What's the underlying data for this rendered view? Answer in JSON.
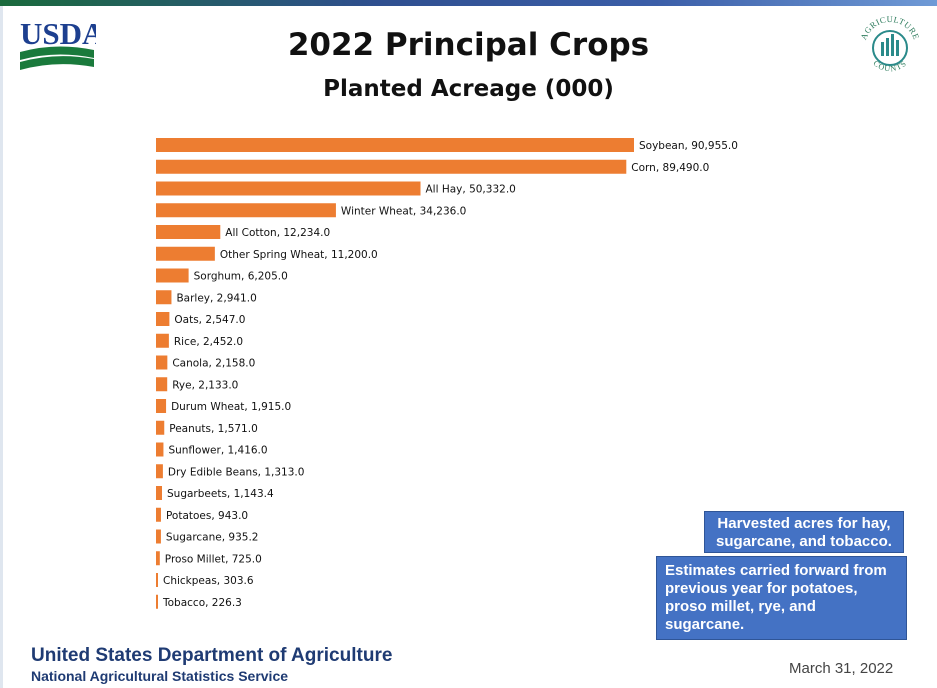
{
  "header": {
    "agency_logo_text": "USDA",
    "seal_text_top": "AGRICULTURE",
    "seal_text_bottom": "COUNTS"
  },
  "chart_data": {
    "type": "bar",
    "orientation": "horizontal",
    "title": "2022 Principal Crops",
    "subtitle": "Planted Acreage (000)",
    "xlabel": "",
    "ylabel": "",
    "grid": false,
    "bar_color": "#ed7d31",
    "xlim": [
      0,
      90955
    ],
    "categories": [
      "Soybean",
      "Corn",
      "All Hay",
      "Winter Wheat",
      "All Cotton",
      "Other Spring Wheat",
      "Sorghum",
      "Barley",
      "Oats",
      "Rice",
      "Canola",
      "Rye",
      "Durum Wheat",
      "Peanuts",
      "Sunflower",
      "Dry Edible Beans",
      "Sugarbeets",
      "Potatoes",
      "Sugarcane",
      "Proso Millet",
      "Chickpeas",
      "Tobacco"
    ],
    "values": [
      90955.0,
      89490.0,
      50332.0,
      34236.0,
      12234.0,
      11200.0,
      6205.0,
      2941.0,
      2547.0,
      2452.0,
      2158.0,
      2133.0,
      1915.0,
      1571.0,
      1416.0,
      1313.0,
      1143.4,
      943.0,
      935.2,
      725.0,
      303.6,
      226.3
    ],
    "data_labels": [
      "Soybean, 90,955.0",
      "Corn, 89,490.0",
      "All Hay, 50,332.0",
      "Winter Wheat, 34,236.0",
      "All Cotton, 12,234.0",
      "Other Spring Wheat, 11,200.0",
      "Sorghum, 6,205.0",
      "Barley, 2,941.0",
      "Oats, 2,547.0",
      "Rice, 2,452.0",
      "Canola, 2,158.0",
      "Rye, 2,133.0",
      "Durum Wheat, 1,915.0",
      "Peanuts, 1,571.0",
      "Sunflower, 1,416.0",
      "Dry Edible Beans, 1,313.0",
      "Sugarbeets, 1,143.4",
      "Potatoes, 943.0",
      "Sugarcane, 935.2",
      "Proso Millet, 725.0",
      "Chickpeas, 303.6",
      "Tobacco, 226.3"
    ]
  },
  "notes": {
    "harvested": "Harvested acres for hay, sugarcane, and tobacco.",
    "carried_forward": "Estimates carried forward from previous year for potatoes, proso millet, rye, and sugarcane."
  },
  "footer": {
    "department": "United States Department of Agriculture",
    "service": "National Agricultural Statistics Service",
    "date": "March 31, 2022"
  }
}
